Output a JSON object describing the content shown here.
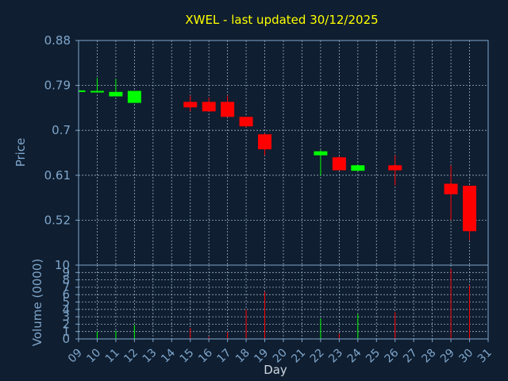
{
  "chart_data": [
    {
      "type": "candlestick",
      "title": "XWEL - last updated 30/12/2025",
      "ylabel": "Price",
      "ylim": [
        0.43,
        0.88
      ],
      "yticks": [
        "0.88",
        "0.79",
        "0.7",
        "0.61",
        "0.52"
      ],
      "x_ticks": [
        "09",
        "10",
        "11",
        "12",
        "13",
        "14",
        "15",
        "16",
        "17",
        "18",
        "19",
        "20",
        "21",
        "22",
        "23",
        "24",
        "25",
        "26",
        "27",
        "28",
        "29",
        "30",
        "31"
      ],
      "grid": true,
      "candles": [
        {
          "day": 9,
          "open": 0.777,
          "high": 0.78,
          "low": 0.777,
          "close": 0.78
        },
        {
          "day": 10,
          "open": 0.777,
          "high": 0.805,
          "low": 0.777,
          "close": 0.779
        },
        {
          "day": 11,
          "open": 0.768,
          "high": 0.803,
          "low": 0.768,
          "close": 0.777
        },
        {
          "day": 12,
          "open": 0.755,
          "high": 0.779,
          "low": 0.755,
          "close": 0.779
        },
        {
          "day": 15,
          "open": 0.757,
          "high": 0.77,
          "low": 0.738,
          "close": 0.746
        },
        {
          "day": 16,
          "open": 0.757,
          "high": 0.766,
          "low": 0.738,
          "close": 0.738
        },
        {
          "day": 17,
          "open": 0.757,
          "high": 0.77,
          "low": 0.727,
          "close": 0.727
        },
        {
          "day": 18,
          "open": 0.727,
          "high": 0.727,
          "low": 0.706,
          "close": 0.708
        },
        {
          "day": 19,
          "open": 0.692,
          "high": 0.694,
          "low": 0.65,
          "close": 0.662
        },
        {
          "day": 22,
          "open": 0.65,
          "high": 0.66,
          "low": 0.609,
          "close": 0.658
        },
        {
          "day": 23,
          "open": 0.646,
          "high": 0.648,
          "low": 0.62,
          "close": 0.62
        },
        {
          "day": 24,
          "open": 0.619,
          "high": 0.631,
          "low": 0.619,
          "close": 0.63
        },
        {
          "day": 26,
          "open": 0.63,
          "high": 0.65,
          "low": 0.59,
          "close": 0.62
        },
        {
          "day": 29,
          "open": 0.593,
          "high": 0.63,
          "low": 0.52,
          "close": 0.572
        },
        {
          "day": 30,
          "open": 0.589,
          "high": 0.589,
          "low": 0.48,
          "close": 0.498
        }
      ]
    },
    {
      "type": "bar",
      "ylabel": "Volume (0000)",
      "xlabel": "Day",
      "ylim": [
        0,
        10
      ],
      "yticks": [
        "10",
        "9",
        "8",
        "7",
        "6",
        "5",
        "4",
        "3",
        "2",
        "1",
        "0"
      ],
      "grid": true,
      "bars": [
        {
          "day": 10,
          "value": 1.0,
          "up": true
        },
        {
          "day": 11,
          "value": 1.1,
          "up": true
        },
        {
          "day": 12,
          "value": 1.9,
          "up": true
        },
        {
          "day": 15,
          "value": 1.5,
          "up": false
        },
        {
          "day": 16,
          "value": 0.3,
          "up": false
        },
        {
          "day": 17,
          "value": 0.9,
          "up": false
        },
        {
          "day": 18,
          "value": 4.0,
          "up": false
        },
        {
          "day": 19,
          "value": 6.4,
          "up": false
        },
        {
          "day": 22,
          "value": 2.8,
          "up": true
        },
        {
          "day": 23,
          "value": 0.7,
          "up": false
        },
        {
          "day": 24,
          "value": 3.4,
          "up": true
        },
        {
          "day": 26,
          "value": 3.6,
          "up": false
        },
        {
          "day": 29,
          "value": 9.5,
          "up": false
        },
        {
          "day": 30,
          "value": 7.3,
          "up": false
        }
      ]
    }
  ],
  "colors": {
    "up": "#00ff00",
    "down": "#ff0000",
    "grid": "#9ab0c8",
    "axis": "#7fa6cc",
    "background": "#0f1e30",
    "title": "#ffff00"
  }
}
